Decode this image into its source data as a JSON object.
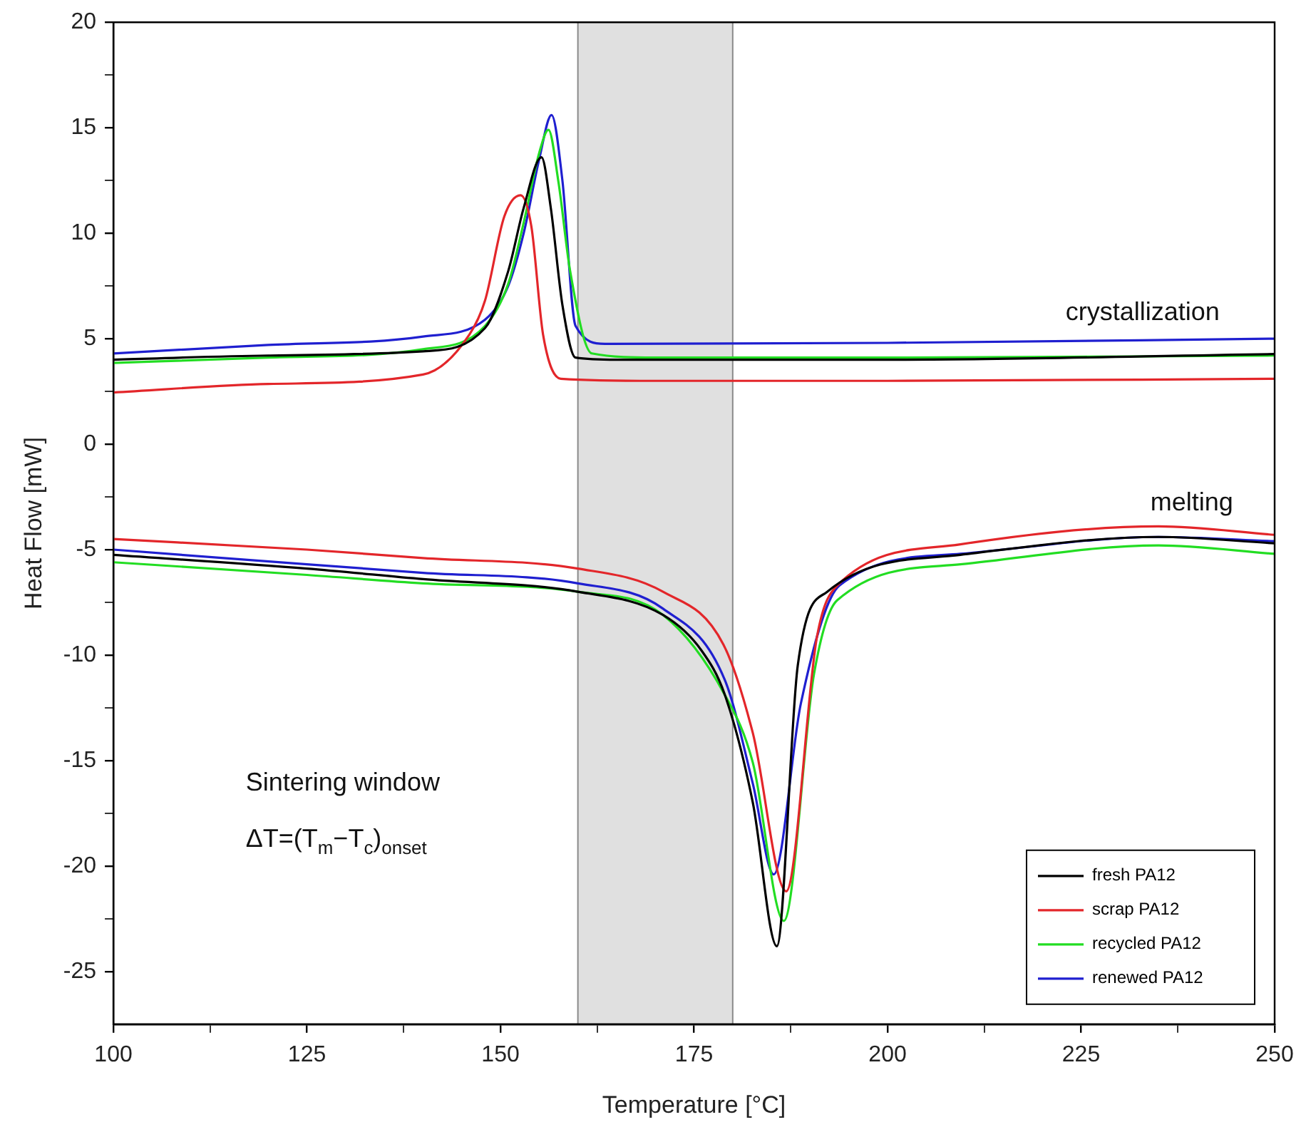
{
  "chart_data": {
    "type": "line",
    "xlabel": "Temperature [°C]",
    "ylabel": "Heat Flow [mW]",
    "xlim": [
      100,
      250
    ],
    "ylim": [
      -27.5,
      20
    ],
    "xticks": [
      100,
      {
        "value": 112.5,
        "label": null
      },
      125,
      {
        "value": 137.5,
        "label": null
      },
      150,
      {
        "value": 162.5,
        "label": null
      },
      175,
      {
        "value": 187.5,
        "label": null
      },
      200,
      {
        "value": 212.5,
        "label": null
      },
      225,
      {
        "value": 237.5,
        "label": null
      },
      250
    ],
    "yticks": [
      -25,
      {
        "value": -22.5,
        "label": null
      },
      -20,
      {
        "value": -17.5,
        "label": null
      },
      -15,
      {
        "value": -12.5,
        "label": null
      },
      -10,
      {
        "value": -7.5,
        "label": null
      },
      -5,
      {
        "value": -2.5,
        "label": null
      },
      0,
      {
        "value": 2.5,
        "label": null
      },
      5,
      {
        "value": 7.5,
        "label": null
      },
      10,
      {
        "value": 12.5,
        "label": null
      },
      15,
      {
        "value": 17.5,
        "label": null
      },
      20
    ],
    "grid": false,
    "legend": "bottom right",
    "line_style": "solid",
    "marker": "none",
    "bands": [
      {
        "axis": "x",
        "from": 160,
        "to": 180,
        "color": "#e0e0e0"
      }
    ],
    "ref_lines": [
      {
        "axis": "x",
        "value": 160,
        "color": "#8a8a8a"
      },
      {
        "axis": "x",
        "value": 180,
        "color": "#8a8a8a"
      }
    ],
    "annotations": [
      "crystallization",
      "melting",
      "Sintering window",
      "ΔT=(T$_{m}$−T$_{c}$)$_{onset}$"
    ],
    "series": [
      {
        "name": "fresh PA12",
        "color": "#000000",
        "x": [
          100,
          120,
          140,
          148,
          151,
          153,
          155.3,
          156.5,
          158,
          159.7,
          165,
          200,
          250
        ],
        "values": [
          4.0,
          4.2,
          4.4,
          5.5,
          8.2,
          11.2,
          13.6,
          11.2,
          6.6,
          4.1,
          4.0,
          4.0,
          4.27
        ]
      },
      {
        "name": "scrap PA12",
        "color": "#e3262a",
        "x": [
          100,
          120,
          140,
          146,
          148,
          150.5,
          152.6,
          154,
          155.5,
          157.8,
          170,
          200,
          250
        ],
        "values": [
          2.45,
          2.85,
          3.3,
          5.2,
          6.8,
          10.8,
          11.8,
          10.3,
          5.2,
          3.1,
          3.0,
          3.0,
          3.1
        ]
      },
      {
        "name": "recycled PA12",
        "color": "#22dd22",
        "x": [
          100,
          120,
          140,
          148,
          151,
          153,
          155,
          156.2,
          157.5,
          159,
          161.8,
          170,
          200,
          250
        ],
        "values": [
          3.85,
          4.1,
          4.5,
          5.6,
          7.6,
          10.5,
          13.8,
          14.9,
          12.4,
          8.2,
          4.3,
          4.1,
          4.1,
          4.2
        ]
      },
      {
        "name": "renewed PA12",
        "color": "#1f1fd0",
        "x": [
          100,
          120,
          140,
          148,
          151,
          153,
          155,
          156.6,
          158,
          159.7,
          163.5,
          200,
          250
        ],
        "values": [
          4.3,
          4.7,
          5.1,
          5.9,
          7.5,
          10.0,
          13.5,
          15.6,
          12.5,
          5.6,
          4.75,
          4.8,
          5.0
        ]
      },
      {
        "color": "#000000",
        "x": [
          100,
          125,
          140,
          160,
          171,
          176,
          179,
          182.6,
          185.7,
          188.4,
          192.2,
          209.4,
          235,
          250
        ],
        "values": [
          -5.25,
          -5.9,
          -6.4,
          -7.0,
          -8.1,
          -9.8,
          -11.9,
          -17,
          -23.8,
          -10.5,
          -7.0,
          -5.25,
          -4.4,
          -4.7
        ]
      },
      {
        "color": "#e3262a",
        "x": [
          100,
          125,
          140,
          160,
          171,
          178.8,
          182.6,
          186.9,
          190.9,
          193.5,
          209.4,
          235,
          250
        ],
        "values": [
          -4.5,
          -5.0,
          -5.4,
          -5.9,
          -7.0,
          -9.5,
          -13.7,
          -21.2,
          -9.1,
          -6.7,
          -4.75,
          -3.9,
          -4.3
        ]
      },
      {
        "color": "#22dd22",
        "x": [
          100,
          125,
          140,
          160,
          171,
          179,
          182.6,
          186.6,
          190.5,
          193.5,
          209.4,
          235,
          250
        ],
        "values": [
          -5.6,
          -6.2,
          -6.6,
          -7.0,
          -8.1,
          -11.9,
          -15.1,
          -22.6,
          -10.9,
          -7.4,
          -5.7,
          -4.8,
          -5.2
        ]
      },
      {
        "color": "#1f1fd0",
        "x": [
          100,
          125,
          140,
          160,
          171,
          179,
          182.6,
          185.3,
          188.8,
          193.8,
          209.4,
          235,
          250
        ],
        "values": [
          -5.0,
          -5.7,
          -6.1,
          -6.6,
          -7.8,
          -11.2,
          -16.1,
          -20.4,
          -12.3,
          -6.7,
          -5.2,
          -4.4,
          -4.6
        ]
      }
    ]
  }
}
